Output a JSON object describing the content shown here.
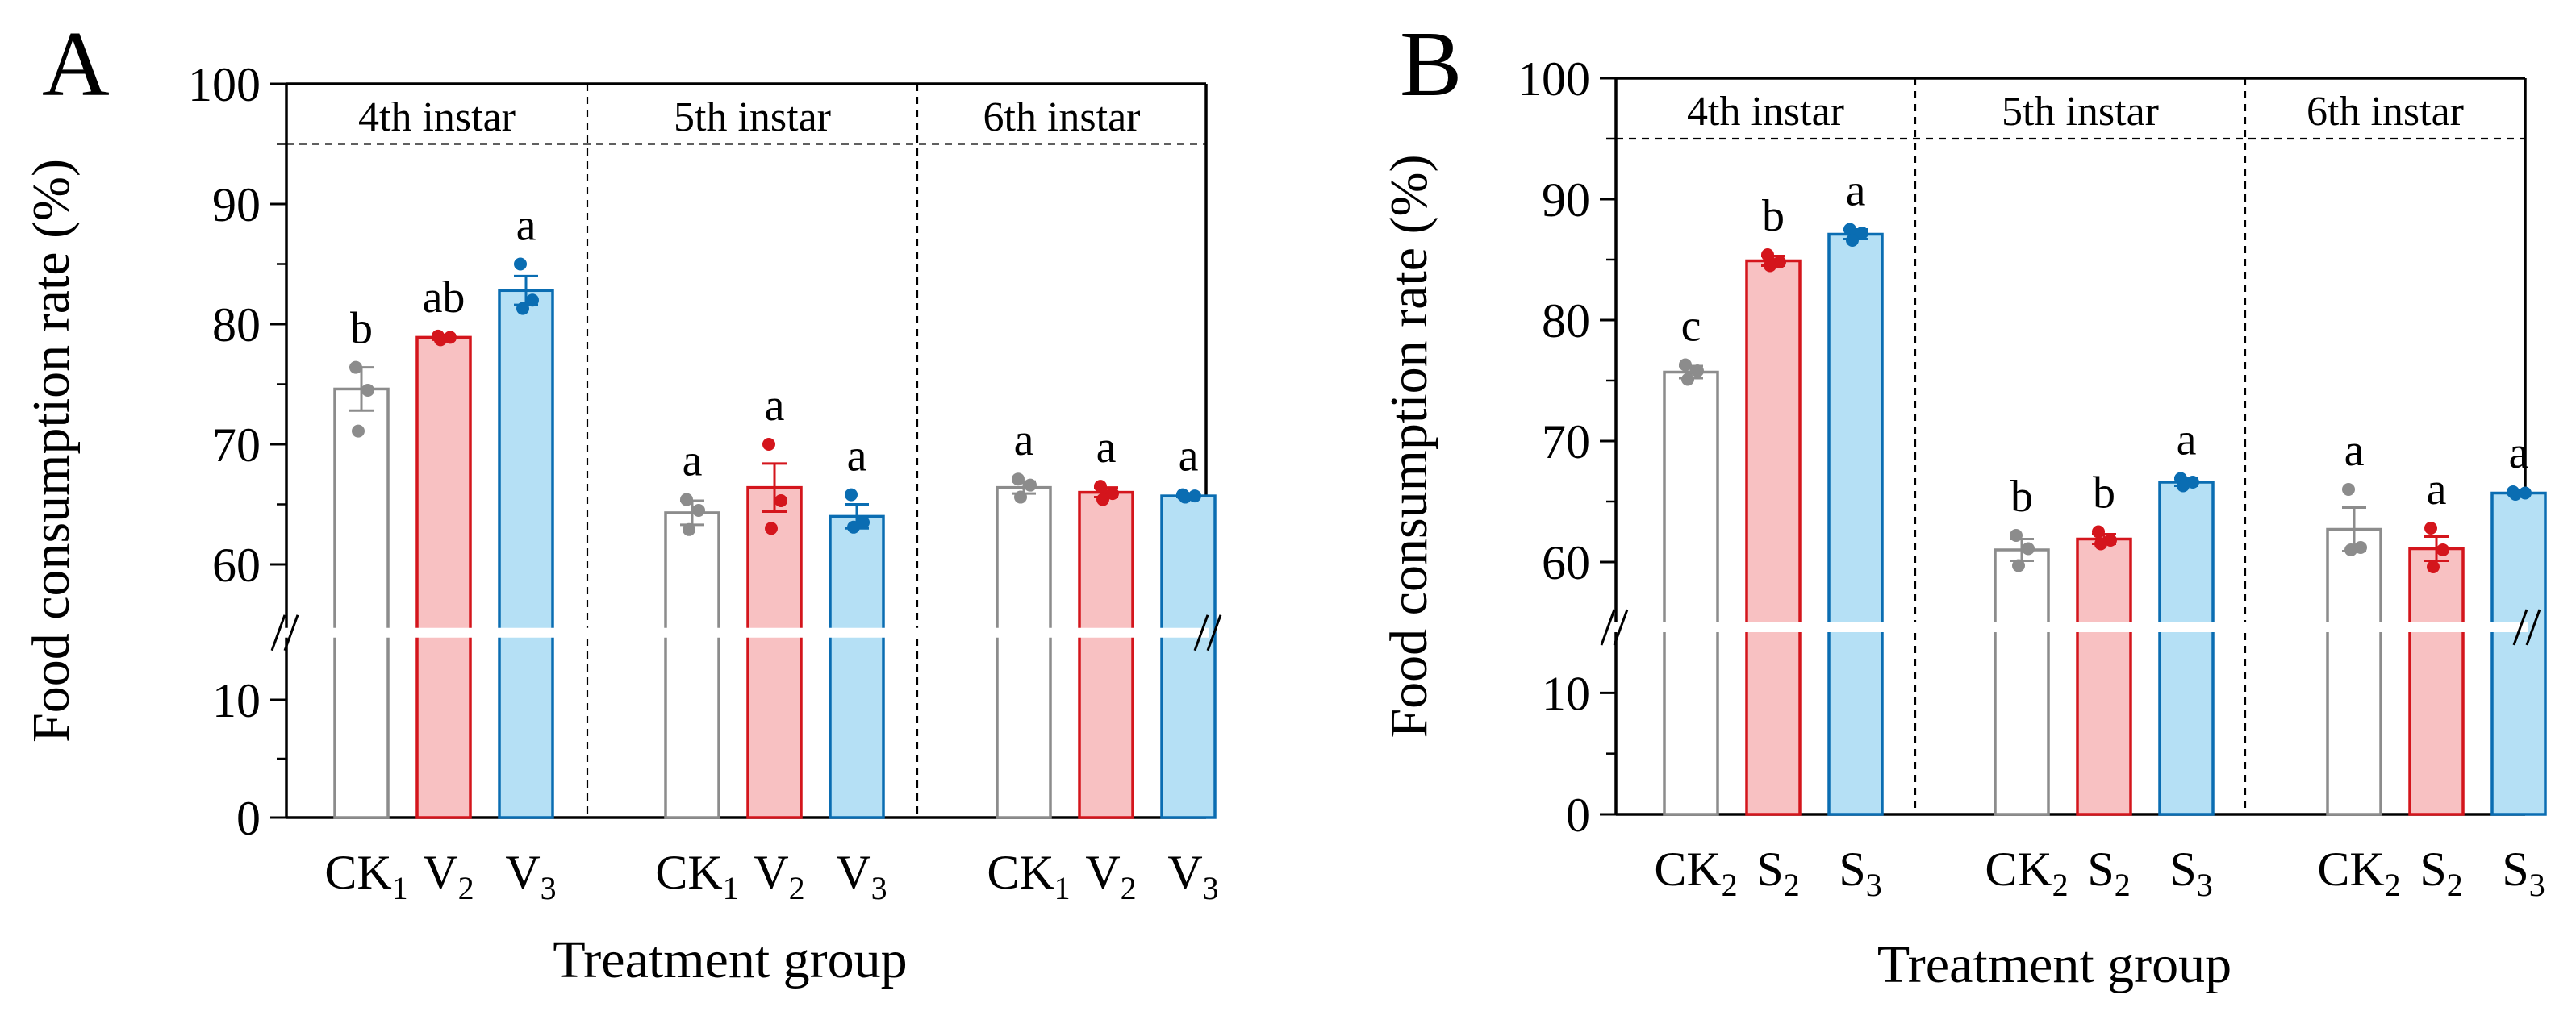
{
  "chart_data": [
    {
      "type": "bar",
      "panel_label": "A",
      "ylabel": "Food consumption rate (%)",
      "xlabel": "Treatment group",
      "ylim": [
        0,
        100
      ],
      "axis_break": [
        15,
        55
      ],
      "yticks": [
        "0",
        "10",
        "60",
        "70",
        "80",
        "90",
        "100"
      ],
      "groups": [
        {
          "label": "4th instar",
          "bars": [
            {
              "name": "CK",
              "sub": "1",
              "value": 74.6,
              "se": 1.8,
              "sig": "b",
              "color": "#ffffff",
              "edge": "#8c8c8c",
              "dot": "#8c8c8c",
              "points": [
                76.4,
                74.5,
                71.1
              ]
            },
            {
              "name": "V",
              "sub": "2",
              "value": 78.9,
              "se": 0.2,
              "sig": "ab",
              "color": "#f8c1c2",
              "edge": "#d4151c",
              "dot": "#d4151c",
              "points": [
                79.0,
                78.9,
                78.7
              ]
            },
            {
              "name": "V",
              "sub": "3",
              "value": 82.8,
              "se": 1.2,
              "sig": "a",
              "color": "#b5e0f5",
              "edge": "#0a6db2",
              "dot": "#0a6db2",
              "points": [
                85.0,
                82.0,
                81.3
              ]
            }
          ]
        },
        {
          "label": "5th instar",
          "bars": [
            {
              "name": "CK",
              "sub": "1",
              "value": 64.3,
              "se": 1.0,
              "sig": "a",
              "color": "#ffffff",
              "edge": "#8c8c8c",
              "dot": "#8c8c8c",
              "points": [
                65.4,
                64.5,
                62.9
              ]
            },
            {
              "name": "V",
              "sub": "2",
              "value": 66.4,
              "se": 2.0,
              "sig": "a",
              "color": "#f8c1c2",
              "edge": "#d4151c",
              "dot": "#d4151c",
              "points": [
                70.0,
                65.3,
                63.0
              ]
            },
            {
              "name": "V",
              "sub": "3",
              "value": 64.0,
              "se": 1.0,
              "sig": "a",
              "color": "#b5e0f5",
              "edge": "#0a6db2",
              "dot": "#0a6db2",
              "points": [
                65.8,
                63.5,
                63.1
              ]
            }
          ]
        },
        {
          "label": "6th instar",
          "bars": [
            {
              "name": "CK",
              "sub": "1",
              "value": 66.4,
              "se": 0.5,
              "sig": "a",
              "color": "#ffffff",
              "edge": "#8c8c8c",
              "dot": "#8c8c8c",
              "points": [
                67.1,
                66.6,
                65.6
              ]
            },
            {
              "name": "V",
              "sub": "2",
              "value": 66.0,
              "se": 0.4,
              "sig": "a",
              "color": "#f8c1c2",
              "edge": "#d4151c",
              "dot": "#d4151c",
              "points": [
                66.5,
                65.9,
                65.4
              ]
            },
            {
              "name": "V",
              "sub": "3",
              "value": 65.7,
              "se": 0.1,
              "sig": "a",
              "color": "#b5e0f5",
              "edge": "#0a6db2",
              "dot": "#0a6db2",
              "points": [
                65.8,
                65.7,
                65.6
              ]
            }
          ]
        }
      ]
    },
    {
      "type": "bar",
      "panel_label": "B",
      "ylabel": "Food consumption rate (%)",
      "xlabel": "Treatment group",
      "ylim": [
        0,
        100
      ],
      "axis_break": [
        15,
        55
      ],
      "yticks": [
        "0",
        "10",
        "60",
        "70",
        "80",
        "90",
        "100"
      ],
      "groups": [
        {
          "label": "4th instar",
          "bars": [
            {
              "name": "CK",
              "sub": "2",
              "value": 75.7,
              "se": 0.5,
              "sig": "c",
              "color": "#ffffff",
              "edge": "#8c8c8c",
              "dot": "#8c8c8c",
              "points": [
                76.3,
                75.8,
                75.1
              ]
            },
            {
              "name": "S",
              "sub": "2",
              "value": 84.9,
              "se": 0.4,
              "sig": "b",
              "color": "#f8c1c2",
              "edge": "#d4151c",
              "dot": "#d4151c",
              "points": [
                85.4,
                84.8,
                84.5
              ]
            },
            {
              "name": "S",
              "sub": "3",
              "value": 87.1,
              "se": 0.4,
              "sig": "a",
              "color": "#b5e0f5",
              "edge": "#0a6db2",
              "dot": "#0a6db2",
              "points": [
                87.5,
                87.2,
                86.6
              ]
            }
          ]
        },
        {
          "label": "5th instar",
          "bars": [
            {
              "name": "CK",
              "sub": "2",
              "value": 61.0,
              "se": 0.9,
              "sig": "b",
              "color": "#ffffff",
              "edge": "#8c8c8c",
              "dot": "#8c8c8c",
              "points": [
                62.2,
                61.1,
                59.7
              ]
            },
            {
              "name": "S",
              "sub": "2",
              "value": 61.9,
              "se": 0.4,
              "sig": "b",
              "color": "#f8c1c2",
              "edge": "#d4151c",
              "dot": "#d4151c",
              "points": [
                62.5,
                61.8,
                61.5
              ]
            },
            {
              "name": "S",
              "sub": "3",
              "value": 66.6,
              "se": 0.3,
              "sig": "a",
              "color": "#b5e0f5",
              "edge": "#0a6db2",
              "dot": "#0a6db2",
              "points": [
                66.9,
                66.6,
                66.3
              ]
            }
          ]
        },
        {
          "label": "6th instar",
          "bars": [
            {
              "name": "CK",
              "sub": "2",
              "value": 62.7,
              "se": 1.8,
              "sig": "a",
              "color": "#ffffff",
              "edge": "#8c8c8c",
              "dot": "#8c8c8c",
              "points": [
                66.0,
                61.2,
                61.0
              ]
            },
            {
              "name": "S",
              "sub": "2",
              "value": 61.1,
              "se": 1.0,
              "sig": "a",
              "color": "#f8c1c2",
              "edge": "#d4151c",
              "dot": "#d4151c",
              "points": [
                62.8,
                61.0,
                59.6
              ]
            },
            {
              "name": "S",
              "sub": "3",
              "value": 65.7,
              "se": 0.1,
              "sig": "a",
              "color": "#b5e0f5",
              "edge": "#0a6db2",
              "dot": "#0a6db2",
              "points": [
                65.8,
                65.7,
                65.6
              ]
            }
          ]
        }
      ]
    }
  ]
}
